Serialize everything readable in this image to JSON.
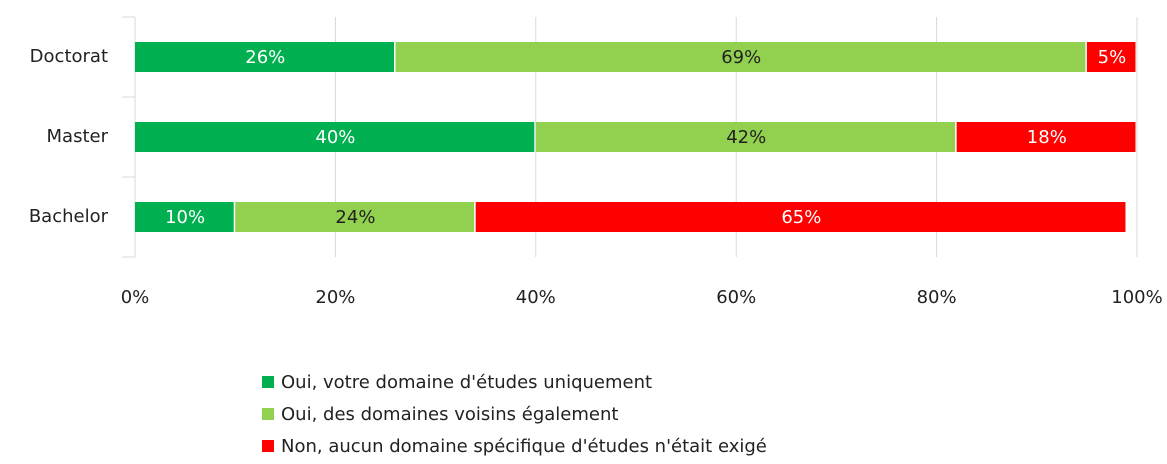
{
  "chart_data": {
    "type": "stacked_bar_horizontal",
    "categories": [
      "Doctorat",
      "Master",
      "Bachelor"
    ],
    "series": [
      {
        "name": "Oui, votre domaine d'études uniquement",
        "color": "#00b050",
        "label_color": "#ffffff",
        "values": [
          26,
          40,
          10
        ],
        "value_labels": [
          "26%",
          "40%",
          "10%"
        ]
      },
      {
        "name": "Oui, des domaines voisins également",
        "color": "#92d050",
        "label_color": "#222222",
        "values": [
          69,
          42,
          24
        ],
        "value_labels": [
          "69%",
          "42%",
          "24%"
        ]
      },
      {
        "name": "Non, aucun domaine spécifique d'études n'était exigé",
        "color": "#ff0000",
        "label_color": "#ffffff",
        "values": [
          5,
          18,
          65
        ],
        "value_labels": [
          "5%",
          "18%",
          "65%"
        ]
      }
    ],
    "xlim": [
      0,
      100
    ],
    "xticks": [
      {
        "value": 0,
        "label": "0%"
      },
      {
        "value": 20,
        "label": "20%"
      },
      {
        "value": 40,
        "label": "40%"
      },
      {
        "value": 60,
        "label": "60%"
      },
      {
        "value": 80,
        "label": "80%"
      },
      {
        "value": 100,
        "label": "100%"
      }
    ],
    "grid": true
  }
}
